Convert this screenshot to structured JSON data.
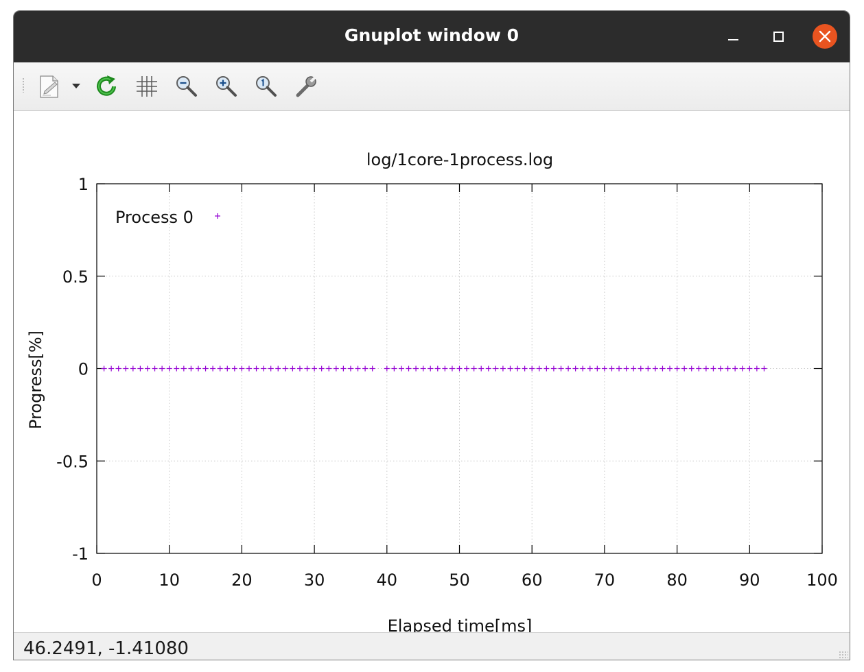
{
  "window": {
    "title": "Gnuplot window 0"
  },
  "toolbar": {
    "items": [
      {
        "name": "export-button",
        "icon": "document-export-icon"
      },
      {
        "name": "export-menu-button",
        "icon": "chevron-down-icon"
      },
      {
        "name": "replot-button",
        "icon": "refresh-icon"
      },
      {
        "name": "grid-button",
        "icon": "grid-icon"
      },
      {
        "name": "zoom-previous-button",
        "icon": "zoom-out-icon"
      },
      {
        "name": "zoom-next-button",
        "icon": "zoom-in-icon"
      },
      {
        "name": "autoscale-button",
        "icon": "zoom-reset-icon"
      },
      {
        "name": "settings-button",
        "icon": "wrench-icon"
      }
    ]
  },
  "status": {
    "coordinates": "46.2491, -1.41080"
  },
  "colors": {
    "titlebar": "#2c2c2c",
    "close_button": "#e95420",
    "series": "#9400d3",
    "grid": "#c8c8c8"
  },
  "chart_data": {
    "type": "scatter",
    "title": "log/1core-1process.log",
    "xlabel": "Elapsed time[ms]",
    "ylabel": "Progress[%]",
    "xlim": [
      0,
      100
    ],
    "ylim": [
      -1,
      1
    ],
    "xticks": [
      "0",
      "10",
      "20",
      "30",
      "40",
      "50",
      "60",
      "70",
      "80",
      "90",
      "100"
    ],
    "yticks": [
      "1",
      "0.5",
      "0",
      "-0.5",
      "-1"
    ],
    "grid": true,
    "legend_position": "top-left",
    "series": [
      {
        "name": "Process 0",
        "marker": "+",
        "color": "#9400d3",
        "x_start": 1.0,
        "x_step": 1.0,
        "x_end": 92.0,
        "missing_x": [
          39.0
        ],
        "y": 0
      }
    ]
  }
}
